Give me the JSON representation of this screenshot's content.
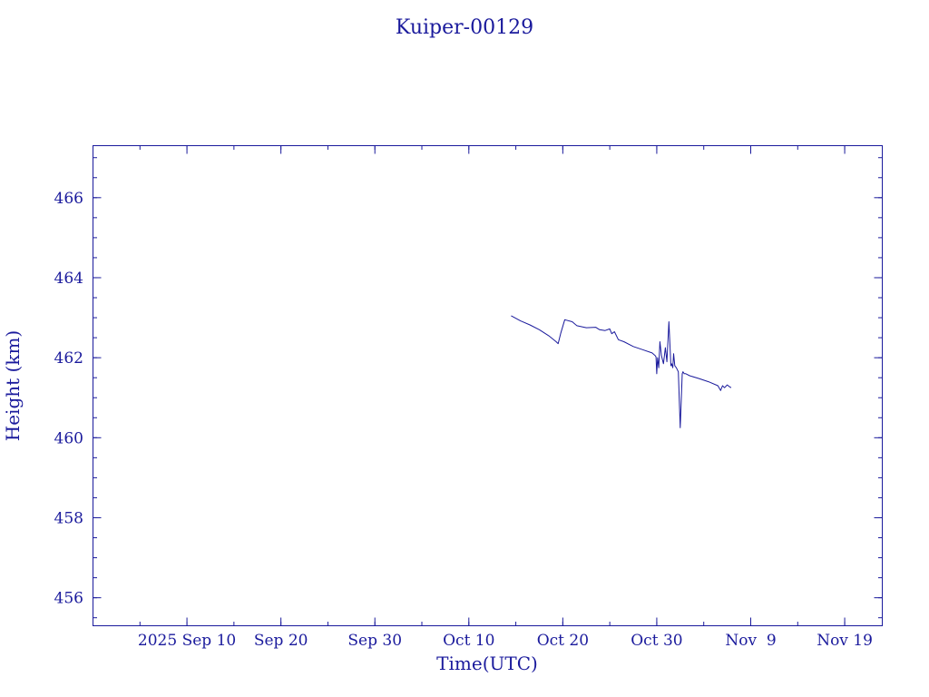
{
  "colors": {
    "ink": "#1a1a9c",
    "background": "#ffffff"
  },
  "chart_data": {
    "type": "line",
    "title": "Kuiper-00129",
    "xlabel": "Time(UTC)",
    "ylabel": "Height (km)",
    "x_axis_type": "date",
    "xlim": [
      "2025-08-31",
      "2025-11-23"
    ],
    "ylim": [
      455.3,
      467.3
    ],
    "grid": false,
    "x_ticks": [
      {
        "date": "2025-09-10",
        "label": "2025 Sep 10"
      },
      {
        "date": "2025-09-20",
        "label": "Sep 20"
      },
      {
        "date": "2025-09-30",
        "label": "Sep 30"
      },
      {
        "date": "2025-10-10",
        "label": "Oct 10"
      },
      {
        "date": "2025-10-20",
        "label": "Oct 20"
      },
      {
        "date": "2025-10-30",
        "label": "Oct 30"
      },
      {
        "date": "2025-11-09",
        "label": "Nov  9"
      },
      {
        "date": "2025-11-19",
        "label": "Nov 19"
      }
    ],
    "y_ticks": [
      {
        "value": 456,
        "label": "456"
      },
      {
        "value": 458,
        "label": "458"
      },
      {
        "value": 460,
        "label": "460"
      },
      {
        "value": 462,
        "label": "462"
      },
      {
        "value": 464,
        "label": "464"
      },
      {
        "value": 466,
        "label": "466"
      }
    ],
    "x_minor_step_days": 5,
    "y_minor_step": 0.5,
    "series": [
      {
        "x": [
          "2025-10-14T12:00",
          "2025-10-15T12:00",
          "2025-10-16T12:00",
          "2025-10-17T12:00",
          "2025-10-18T12:00",
          "2025-10-19T07:00",
          "2025-10-19T12:00",
          "2025-10-19T19:00",
          "2025-10-20T05:00",
          "2025-10-21T00:00",
          "2025-10-21T12:00",
          "2025-10-22T12:00",
          "2025-10-23T12:00",
          "2025-10-23T22:00",
          "2025-10-24T12:00",
          "2025-10-25T00:00",
          "2025-10-25T05:00",
          "2025-10-25T12:00",
          "2025-10-25T22:00",
          "2025-10-26T12:00",
          "2025-10-27T12:00",
          "2025-10-28T12:00",
          "2025-10-29T12:00",
          "2025-10-29T20:00",
          "2025-10-29T22:00",
          "2025-10-30T00:00",
          "2025-10-30T02:00",
          "2025-10-30T05:00",
          "2025-10-30T08:00",
          "2025-10-30T12:00",
          "2025-10-30T17:00",
          "2025-10-30T22:00",
          "2025-10-31T02:00",
          "2025-10-31T07:00",
          "2025-10-31T12:00",
          "2025-10-31T14:00",
          "2025-10-31T17:00",
          "2025-10-31T19:00",
          "2025-10-31T22:00",
          "2025-11-01T02:00",
          "2025-11-01T07:00",
          "2025-11-01T12:00",
          "2025-11-01T17:00",
          "2025-11-01T19:00",
          "2025-11-01T21:00",
          "2025-11-01T22:00",
          "2025-11-02T02:00",
          "2025-11-02T12:00",
          "2025-11-03T12:00",
          "2025-11-04T12:00",
          "2025-11-05T12:00",
          "2025-11-05T19:00",
          "2025-11-06T00:00",
          "2025-11-06T05:00",
          "2025-11-06T12:00",
          "2025-11-06T17:00",
          "2025-11-06T22:00"
        ],
        "y": [
          463.05,
          462.92,
          462.82,
          462.7,
          462.55,
          462.4,
          462.35,
          462.62,
          462.95,
          462.9,
          462.8,
          462.75,
          462.76,
          462.7,
          462.68,
          462.72,
          462.6,
          462.65,
          462.45,
          462.4,
          462.28,
          462.2,
          462.12,
          462.05,
          462.02,
          461.6,
          462.0,
          461.75,
          462.4,
          462.05,
          461.85,
          462.25,
          461.9,
          462.9,
          461.8,
          461.85,
          461.75,
          462.1,
          461.8,
          461.75,
          461.65,
          460.25,
          461.6,
          461.65,
          461.62,
          461.6,
          461.6,
          461.55,
          461.48,
          461.4,
          461.3,
          461.18,
          461.3,
          461.25,
          461.32,
          461.28,
          461.25
        ]
      }
    ]
  }
}
